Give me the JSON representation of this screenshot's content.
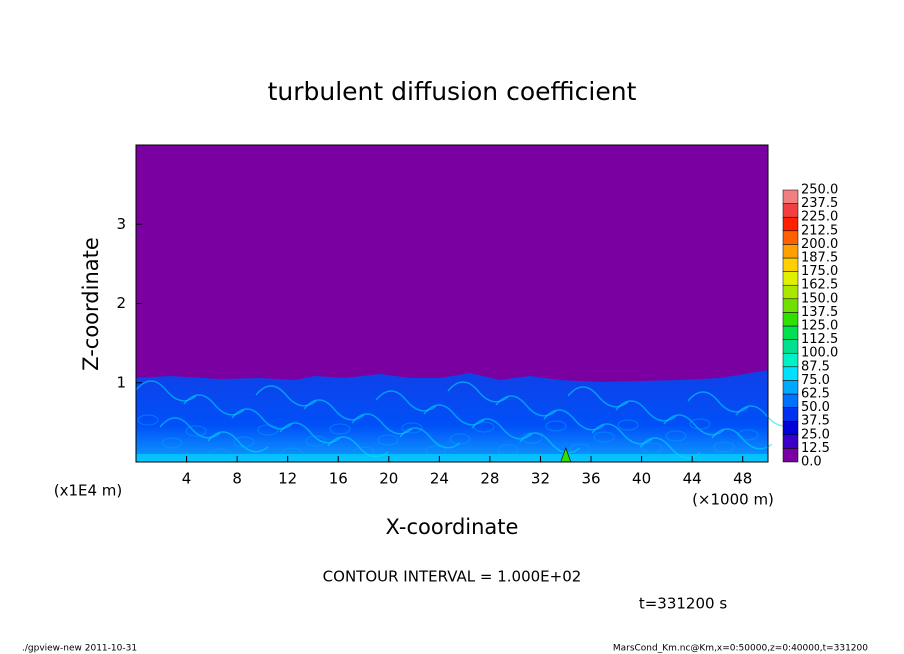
{
  "chart_data": {
    "type": "contour",
    "title": "turbulent diffusion coefficient",
    "x_label": "X-coordinate",
    "y_label": "Z-coordinate",
    "x_unit": "(×1000 m)",
    "y_unit": "(x1E4 m)",
    "xlim": [
      0,
      50
    ],
    "xticks": [
      4,
      8,
      12,
      16,
      20,
      24,
      28,
      32,
      36,
      40,
      44,
      48
    ],
    "ylim": [
      0,
      4
    ],
    "yticks": [
      1,
      2,
      3
    ],
    "colorbar": {
      "levels": [
        {
          "value": 0,
          "label": "0.0"
        },
        12.5,
        {
          "value": 25,
          "label": "25.0"
        },
        37.5,
        {
          "value": 50,
          "label": "50.0"
        },
        62.5,
        {
          "value": 75,
          "label": "75.0"
        },
        87.5,
        {
          "value": 100,
          "label": "100.0"
        },
        112.5,
        {
          "value": 125,
          "label": "125.0"
        },
        137.5,
        {
          "value": 150,
          "label": "150.0"
        },
        162.5,
        {
          "value": 175,
          "label": "175.0"
        },
        187.5,
        {
          "value": 200,
          "label": "200.0"
        },
        212.5,
        {
          "value": 225,
          "label": "225.0"
        },
        237.5,
        {
          "value": 250,
          "label": "250.0"
        }
      ],
      "colors": [
        "#7b00a1",
        "#3a00c8",
        "#0000d8",
        "#0030f0",
        "#0070ff",
        "#00a8ff",
        "#00e0ff",
        "#00f0c8",
        "#00e090",
        "#00e050",
        "#30e000",
        "#70e000",
        "#a8e800",
        "#e0f000",
        "#ffd000",
        "#ffa000",
        "#ff6000",
        "#ff2000",
        "#f04040",
        "#f08080"
      ]
    },
    "annotations": [
      "CONTOUR INTERVAL = 1.000E+02",
      "t=331200 s",
      "./gpview-new  2011-10-31",
      "MarsCond_Km.nc@Km,x=0:50000,z=0:40000,t=331200"
    ]
  }
}
